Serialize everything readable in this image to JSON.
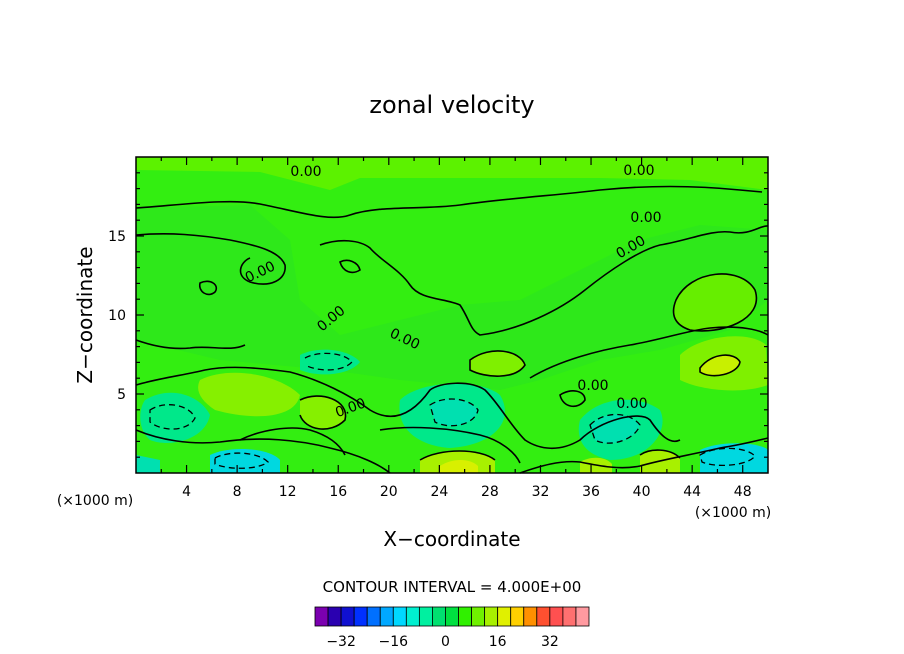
{
  "chart_data": {
    "type": "heatmap",
    "subtype": "filled contour",
    "title": "zonal velocity",
    "xlabel": "X−coordinate",
    "ylabel": "Z−coordinate",
    "x_unit_label": "(×1000 m)",
    "y_unit_label": "(×1000 m)",
    "xlim": [
      0,
      50
    ],
    "ylim": [
      0,
      20
    ],
    "x_ticks": [
      "4",
      "8",
      "12",
      "16",
      "20",
      "24",
      "28",
      "32",
      "36",
      "40",
      "44",
      "48"
    ],
    "y_ticks": [
      "5",
      "10",
      "15"
    ],
    "contour_interval_text": "CONTOUR INTERVAL = 4.000E+00",
    "contour_labels": [
      "0.00",
      "0.00",
      "0.00",
      "0.00",
      "0.00",
      "0.00",
      "0.00",
      "0.00",
      "0.00",
      "0.00"
    ],
    "colorbar": {
      "tick_labels": [
        "−32",
        "−16",
        "0",
        "16",
        "32"
      ],
      "tick_values": [
        -32,
        -16,
        0,
        16,
        32
      ],
      "levels": [
        -40,
        -36,
        -32,
        -28,
        -24,
        -20,
        -16,
        -12,
        -8,
        -4,
        0,
        4,
        8,
        12,
        16,
        20,
        24,
        28,
        32,
        36,
        40
      ],
      "colors": [
        "#7b00b0",
        "#2a00b0",
        "#1010d0",
        "#0030ff",
        "#0070ff",
        "#00a8ff",
        "#00d8ff",
        "#00f0d0",
        "#00f0a0",
        "#00e070",
        "#00e040",
        "#30f000",
        "#70f000",
        "#a8f000",
        "#e0f000",
        "#ffd000",
        "#ff9000",
        "#ff5030",
        "#ff5050",
        "#ff7070",
        "#ff9aa0"
      ]
    },
    "background_color": "#33ee11"
  }
}
